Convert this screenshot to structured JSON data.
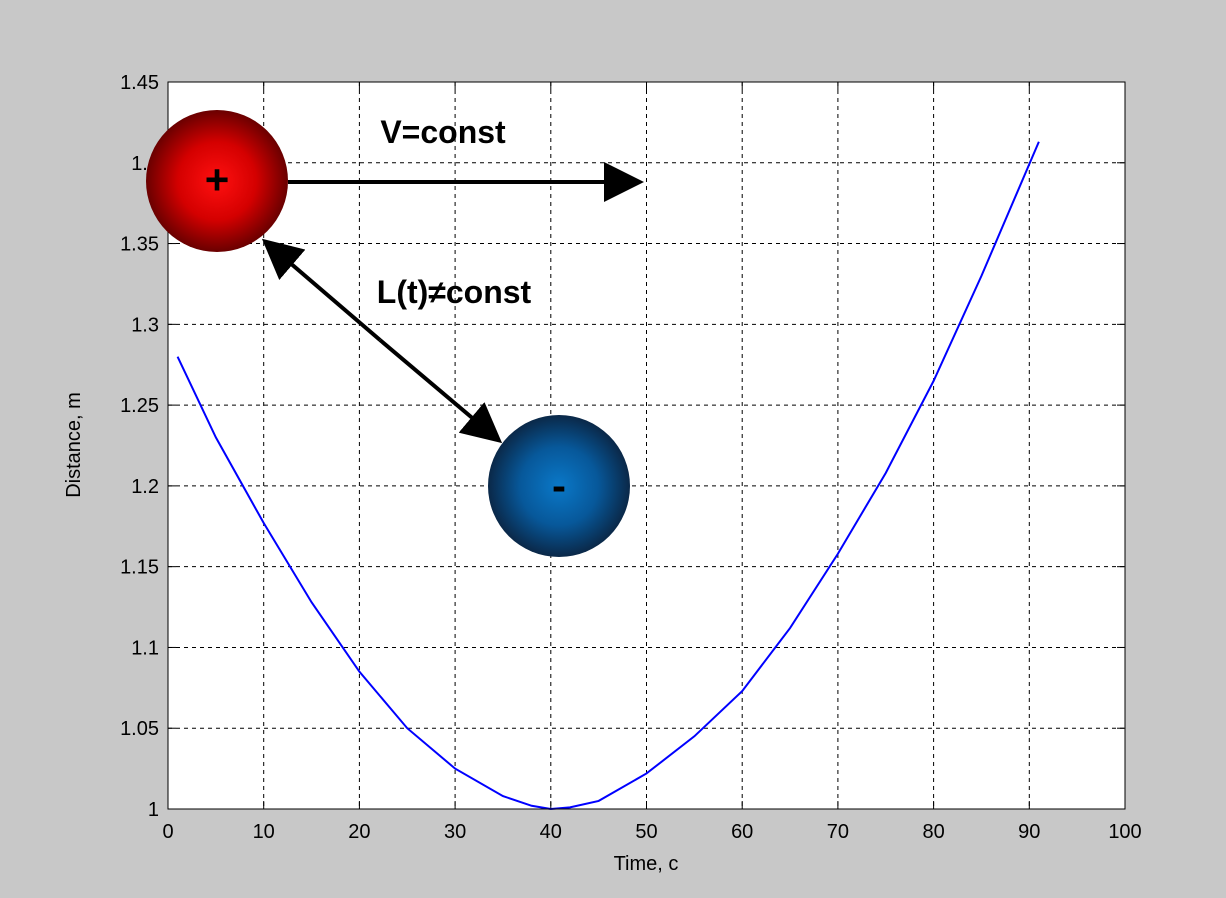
{
  "figure": {
    "background_color": "#c8c8c8",
    "axes_background_color": "#ffffff"
  },
  "chart_data": {
    "type": "line",
    "title": "",
    "xlabel": "Time, c",
    "ylabel": "Distance, m",
    "xlim": [
      0,
      100
    ],
    "ylim": [
      1,
      1.45
    ],
    "xticks": [
      0,
      10,
      20,
      30,
      40,
      50,
      60,
      70,
      80,
      90,
      100
    ],
    "yticks": [
      1,
      1.05,
      1.1,
      1.15,
      1.2,
      1.25,
      1.3,
      1.35,
      1.4,
      1.45
    ],
    "xtick_labels": [
      "0",
      "10",
      "20",
      "30",
      "40",
      "50",
      "60",
      "70",
      "80",
      "90",
      "100"
    ],
    "ytick_labels": [
      "1",
      "1.05",
      "1.1",
      "1.15",
      "1.2",
      "1.25",
      "1.3",
      "1.35",
      "1.4",
      "1.45"
    ],
    "grid": true,
    "series": [
      {
        "color": "#0000ff",
        "x": [
          1,
          5,
          10,
          15,
          20,
          25,
          30,
          35,
          38,
          40,
          42,
          45,
          50,
          55,
          60,
          65,
          70,
          75,
          80,
          85,
          91
        ],
        "y": [
          1.28,
          1.23,
          1.177,
          1.128,
          1.085,
          1.05,
          1.025,
          1.008,
          1.002,
          1.0,
          1.001,
          1.005,
          1.022,
          1.045,
          1.073,
          1.112,
          1.158,
          1.208,
          1.265,
          1.33,
          1.413
        ]
      }
    ],
    "annotations": [
      {
        "text": "V=const"
      },
      {
        "text": "L(t)≠const"
      }
    ],
    "charges": [
      {
        "sign": "+",
        "x": 5,
        "y": 1.39,
        "color": "#e00000"
      },
      {
        "sign": "-",
        "x": 41,
        "y": 1.2,
        "color": "#0066aa"
      }
    ]
  }
}
